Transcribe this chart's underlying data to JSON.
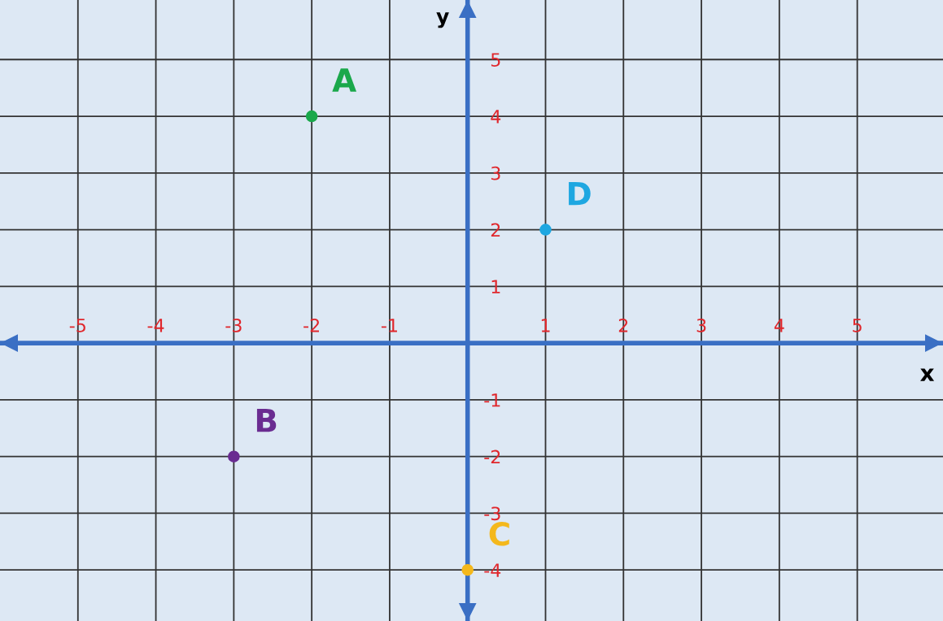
{
  "chart_data": {
    "type": "scatter",
    "xlabel": "x",
    "ylabel": "y",
    "xlim": [
      -6,
      6.1
    ],
    "ylim": [
      -4.9,
      6.05
    ],
    "xticks": [
      -5,
      -4,
      -3,
      -2,
      -1,
      1,
      2,
      3,
      4,
      5
    ],
    "yticks": [
      -4,
      -3,
      -2,
      -1,
      1,
      2,
      3,
      4,
      5
    ],
    "grid": true,
    "legend": false,
    "marker": "circle",
    "series": [
      {
        "name": "A",
        "color": "#1aa84b",
        "x": [
          -2
        ],
        "values": [
          4
        ]
      },
      {
        "name": "B",
        "color": "#6a2c91",
        "x": [
          -3
        ],
        "values": [
          -2
        ]
      },
      {
        "name": "C",
        "color": "#f4b81c",
        "x": [
          0
        ],
        "values": [
          -4
        ]
      },
      {
        "name": "D",
        "color": "#1ea7e1",
        "x": [
          1
        ],
        "values": [
          2
        ]
      }
    ]
  }
}
